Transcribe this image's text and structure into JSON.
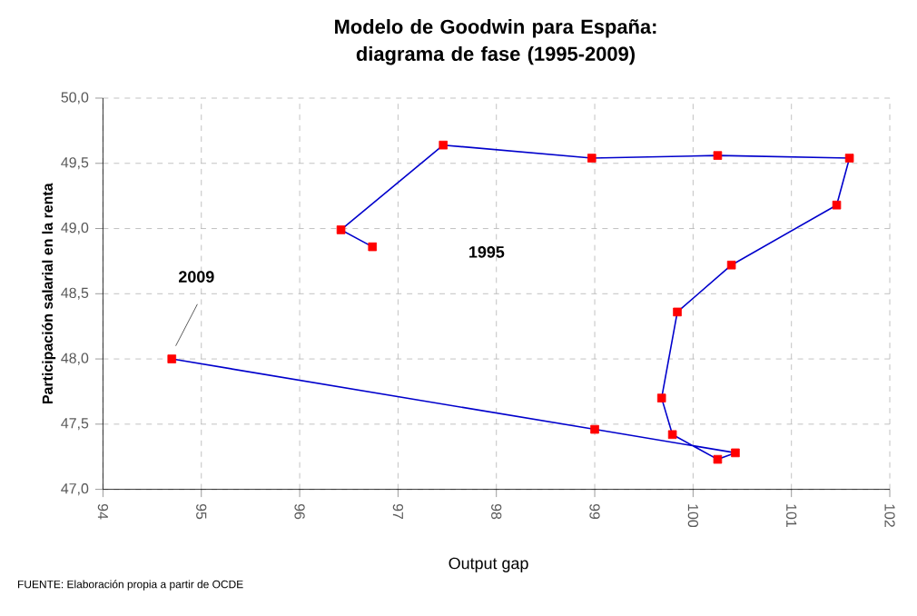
{
  "chart_data": {
    "type": "line",
    "title": "Modelo de Goodwin para España: diagrama de fase (1995-2009)",
    "xlabel": "Output gap",
    "ylabel": "Participación salarial en la renta",
    "series": [
      {
        "color": "#0000cc",
        "colors": [
          "#ff0000",
          "#ff0000",
          "#ff0000",
          "#ff0000",
          "#ff0000",
          "#ff0000",
          "#ff0000",
          "#ff0000",
          "#ff0000",
          "#ff0000",
          "#ff0000",
          "#ff0000",
          "#ff0000",
          "#ff0000",
          "#ff0000"
        ],
        "x": [
          96.74,
          96.42,
          97.46,
          98.97,
          100.25,
          101.59,
          101.46,
          100.39,
          99.84,
          99.68,
          99.79,
          100.25,
          100.43,
          99.0,
          94.7
        ],
        "values": [
          48.86,
          48.99,
          49.64,
          49.54,
          49.56,
          49.54,
          49.18,
          48.72,
          48.36,
          47.7,
          47.42,
          47.23,
          47.28,
          47.46,
          48.0
        ]
      }
    ],
    "xlim": [
      94,
      102
    ],
    "xticks": [
      94,
      95,
      96,
      97,
      98,
      99,
      100,
      101,
      102
    ],
    "ylim": [
      47,
      50
    ],
    "yticks": [
      {
        "value": 47,
        "label": "47,0"
      },
      {
        "value": 47.5,
        "label": "47,5"
      },
      {
        "value": 48,
        "label": "48,0"
      },
      {
        "value": 48.5,
        "label": "48,5"
      },
      {
        "value": 49,
        "label": "49,0"
      },
      {
        "value": 49.5,
        "label": "49,5"
      },
      {
        "value": 50,
        "label": "50,0"
      }
    ],
    "grid": true,
    "marker": "square",
    "line_style": "solid",
    "annotations": [
      "1995",
      "2009",
      "FUENTE: Elaboración propia a partir de OCDE"
    ]
  }
}
